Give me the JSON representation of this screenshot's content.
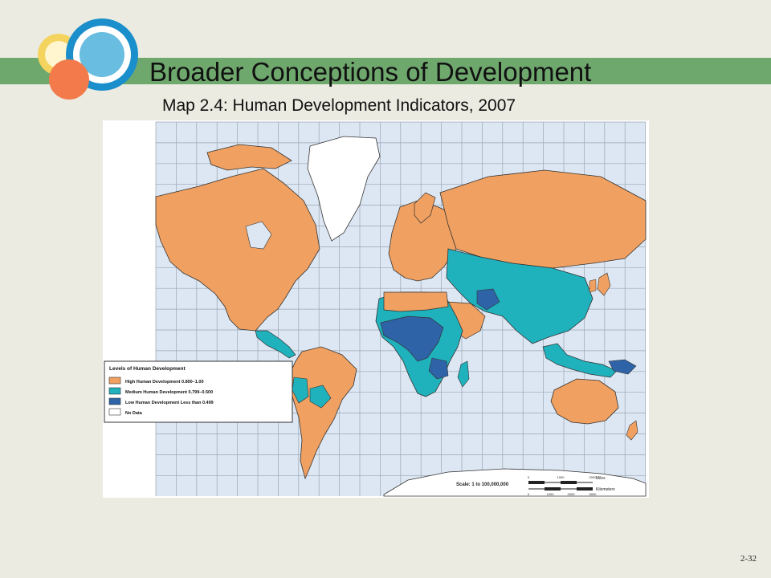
{
  "slide": {
    "title": "Broader Conceptions of Development",
    "subtitle": "Map 2.4: Human Development Indicators, 2007",
    "page_number": "2-32"
  },
  "legend": {
    "title": "Levels of Human Development",
    "items": [
      {
        "label": "High Human Development 0.800–1.00",
        "color": "#f0a060"
      },
      {
        "label": "Medium Human Development 0.799–0.500",
        "color": "#1fb2bd"
      },
      {
        "label": "Low Human Development Less than 0.499",
        "color": "#2e63a8"
      },
      {
        "label": "No Data",
        "color": "#ffffff"
      }
    ]
  },
  "scale": {
    "label": "Scale: 1 to 100,000,000",
    "miles_label": "Miles",
    "km_label": "Kilometers",
    "miles_ticks": [
      "0",
      "1000",
      "2000"
    ],
    "km_ticks": [
      "0",
      "1000",
      "2000",
      "3000"
    ]
  },
  "colors": {
    "band": "#6fa86d",
    "ocean": "#dde7f3",
    "high": "#f0a060",
    "medium": "#1fb2bd",
    "low": "#2e63a8"
  }
}
